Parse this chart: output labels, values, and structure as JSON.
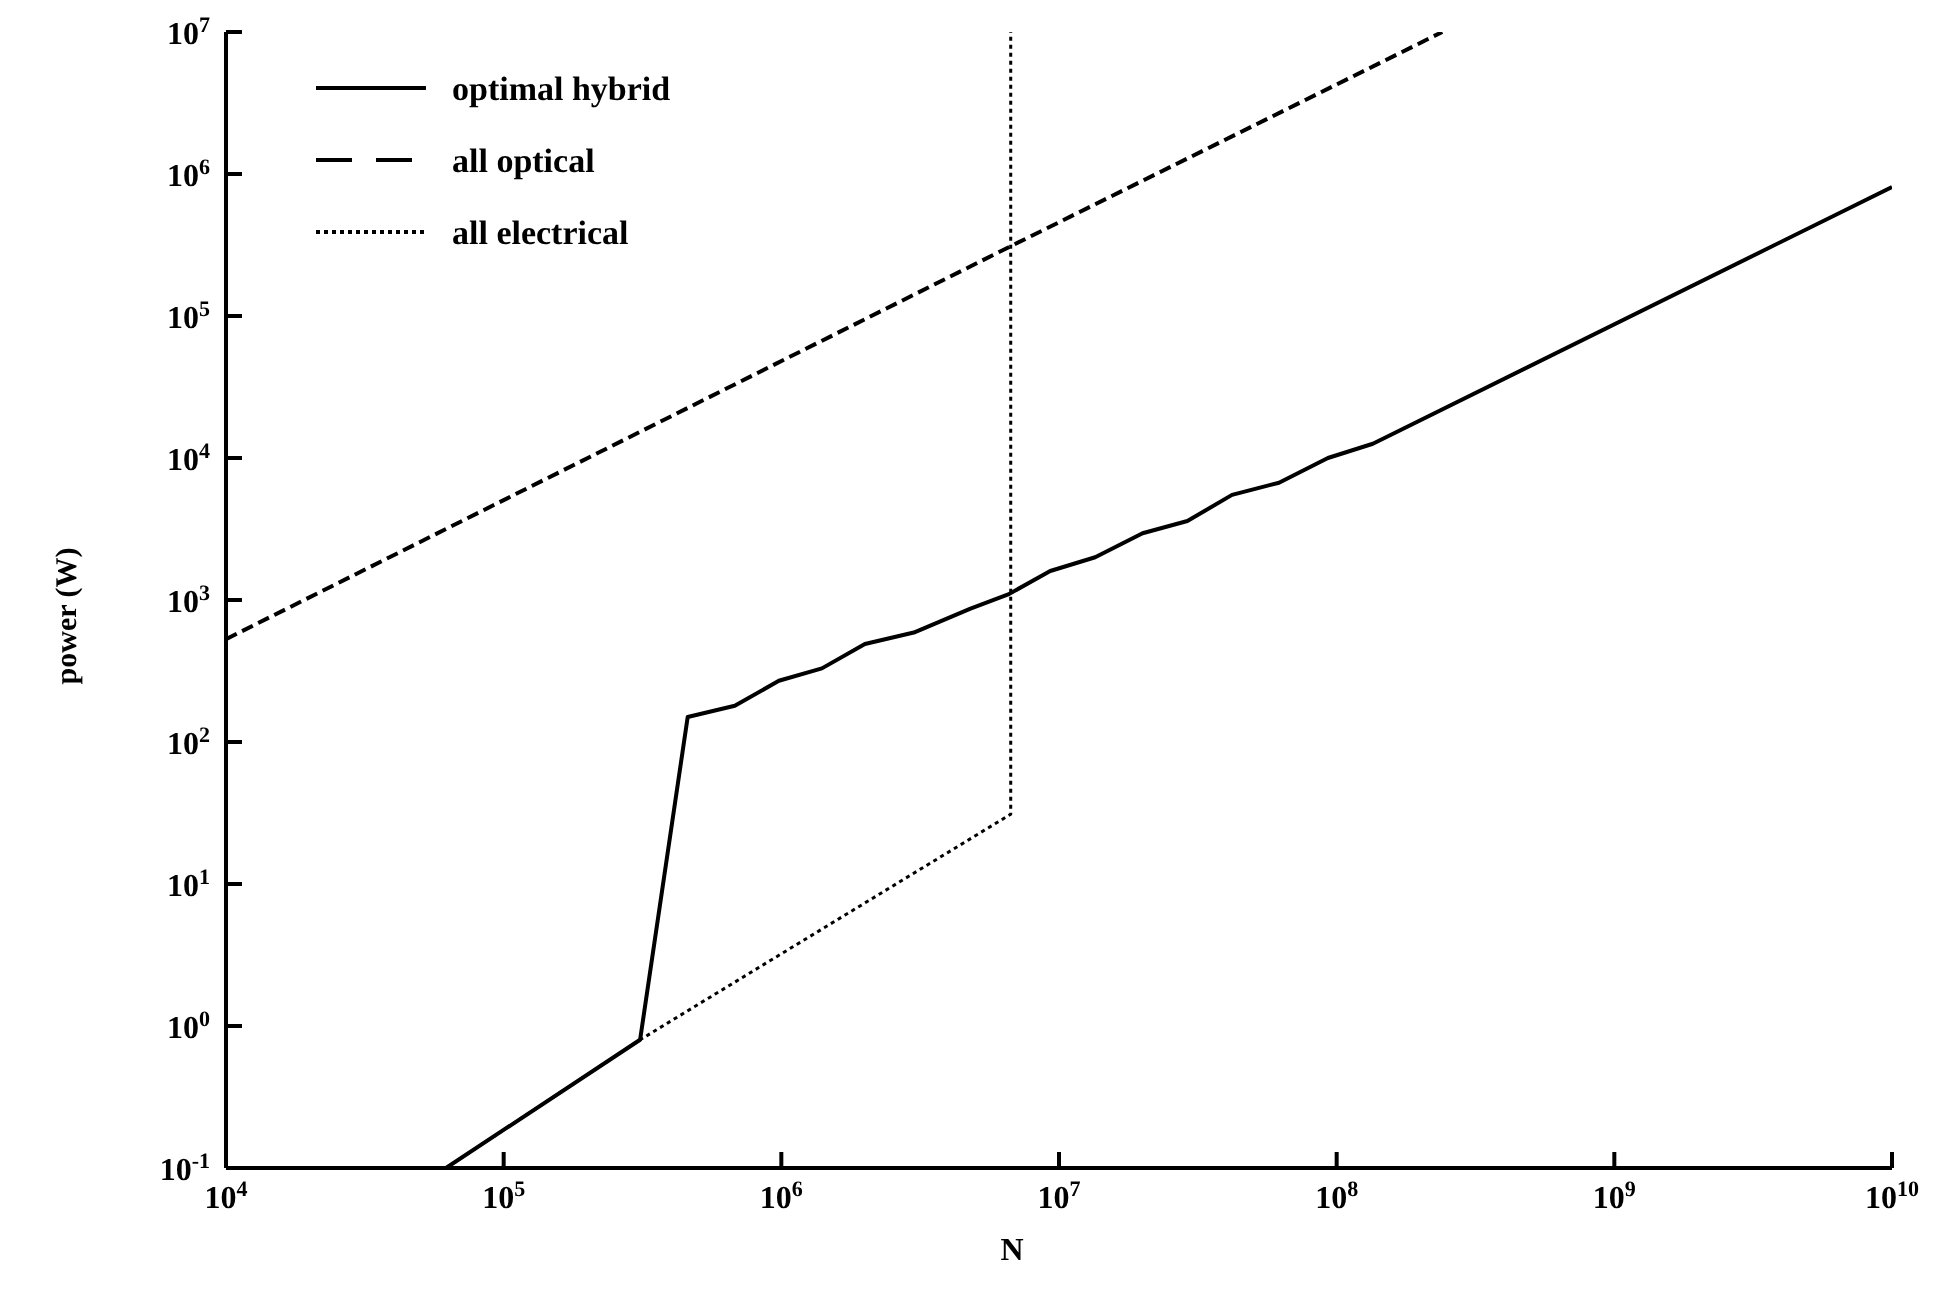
{
  "chart_data": {
    "type": "line",
    "xlabel": "N",
    "ylabel": "power (W)",
    "log": "xy",
    "legend": "top left",
    "grid": false,
    "marker": "none",
    "xlim": [
      10000,
      10000000000
    ],
    "ylim": [
      0.1,
      10000000
    ],
    "xticks": [
      {
        "value": 10000,
        "label": "10$^{4}$"
      },
      {
        "value": 100000,
        "label": "10$^{5}$"
      },
      {
        "value": 1000000,
        "label": "10$^{6}$"
      },
      {
        "value": 10000000,
        "label": "10$^{7}$"
      },
      {
        "value": 100000000,
        "label": "10$^{8}$"
      },
      {
        "value": 1000000000,
        "label": "10$^{9}$"
      },
      {
        "value": 10000000000,
        "label": "10$^{10}$"
      }
    ],
    "yticks": [
      {
        "value": 0.1,
        "label": "10$^{-1}$"
      },
      {
        "value": 1,
        "label": "10$^{0}$"
      },
      {
        "value": 10,
        "label": "10$^{1}$"
      },
      {
        "value": 100,
        "label": "10$^{2}$"
      },
      {
        "value": 1000,
        "label": "10$^{3}$"
      },
      {
        "value": 10000,
        "label": "10$^{4}$"
      },
      {
        "value": 100000,
        "label": "10$^{5}$"
      },
      {
        "value": 1000000,
        "label": "10$^{6}$"
      },
      {
        "value": 10000000,
        "label": "10$^{7}$"
      }
    ],
    "series": [
      {
        "name": "optimal hybrid",
        "color": "#000000",
        "line_style": "solid",
        "x": [
          62000,
          310000,
          460000,
          680000,
          980000,
          1400000,
          2000000,
          3000000,
          4800000,
          6600000,
          9300000,
          13500000,
          20000000,
          29000000,
          42000000,
          62000000,
          93000000,
          135000000,
          10000000000
        ],
        "values": [
          0.1,
          0.8,
          150,
          180,
          270,
          330,
          490,
          590,
          870,
          1100,
          1600,
          2000,
          2950,
          3600,
          5500,
          6700,
          10000,
          12600,
          810000
        ]
      },
      {
        "name": "all optical",
        "color": "#000000",
        "line_style": "dashed",
        "x": [
          10000,
          6700000,
          240000000
        ],
        "values": [
          530,
          310000,
          10000000
        ]
      },
      {
        "name": "all electrical",
        "color": "#000000",
        "line_style": "dotted",
        "x": [
          62000,
          310000,
          6700000,
          6700000
        ],
        "values": [
          0.1,
          0.8,
          31,
          10000000
        ]
      }
    ]
  }
}
